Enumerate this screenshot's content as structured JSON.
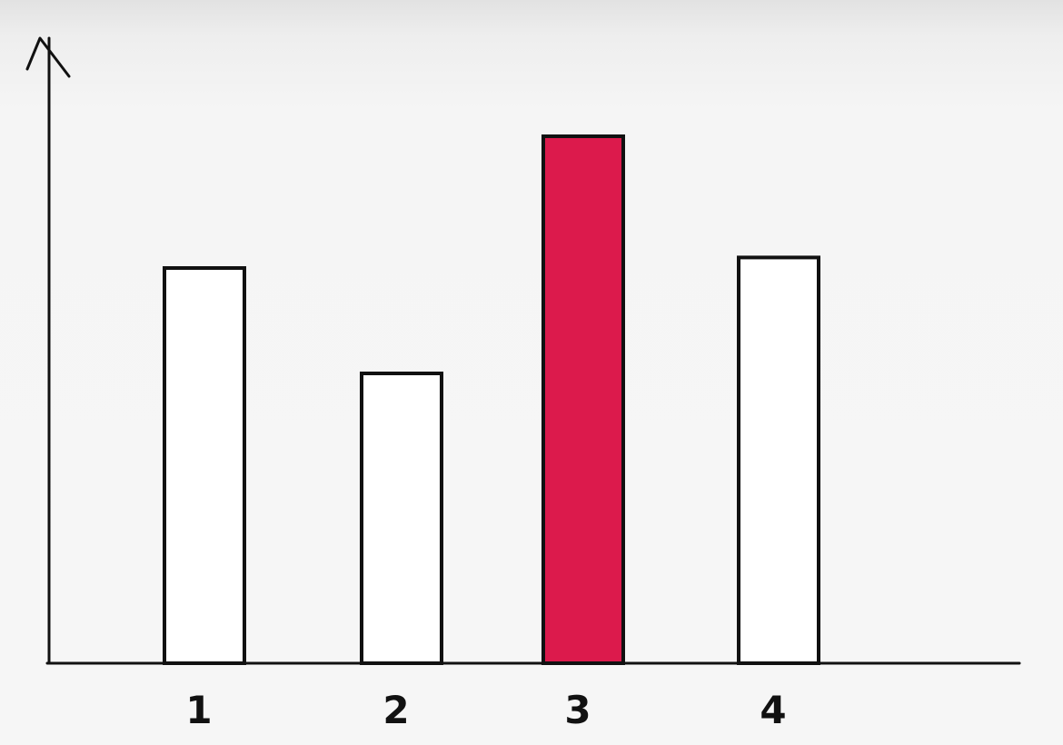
{
  "chart_data": {
    "type": "bar",
    "categories": [
      "1",
      "2",
      "3",
      "4"
    ],
    "values": [
      75,
      55,
      100,
      77
    ],
    "highlighted_category": "3",
    "title": "",
    "xlabel": "",
    "ylabel": "",
    "ylim": [
      0,
      100
    ],
    "grid": false,
    "legend": "none",
    "colors": {
      "bar_fill": "#ffffff",
      "highlight_fill": "#dc1a4c",
      "outline": "#111111"
    }
  }
}
